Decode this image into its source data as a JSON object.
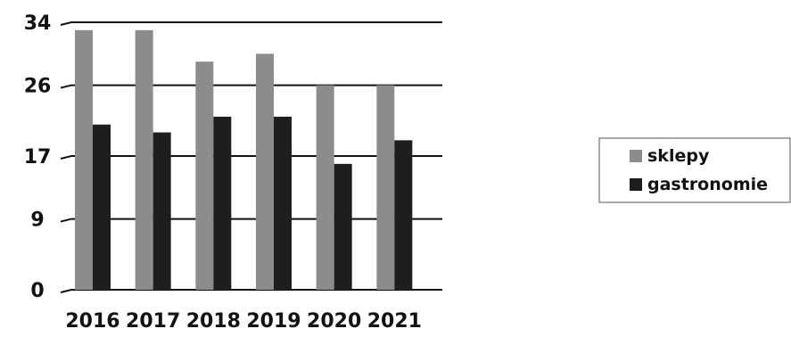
{
  "chart_data": {
    "type": "bar",
    "categories": [
      "2016",
      "2017",
      "2018",
      "2019",
      "2020",
      "2021"
    ],
    "series": [
      {
        "name": "sklepy",
        "values": [
          33,
          33,
          29,
          30,
          26,
          26
        ],
        "color": "#8c8c8c"
      },
      {
        "name": "gastronomie",
        "values": [
          21,
          20,
          22,
          22,
          16,
          19
        ],
        "color": "#1e1e1e"
      }
    ],
    "yticks": [
      "0",
      "9",
      "17",
      "26",
      "34"
    ],
    "ylim": [
      0,
      34
    ],
    "grid": true,
    "legend": "right",
    "title": "",
    "xlabel": "",
    "ylabel": ""
  }
}
